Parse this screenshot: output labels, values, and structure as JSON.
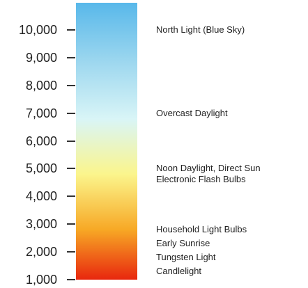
{
  "scale": {
    "unit": "",
    "ticks": [
      {
        "value": 10000,
        "label": "10,000"
      },
      {
        "value": 9000,
        "label": "9,000"
      },
      {
        "value": 8000,
        "label": "8,000"
      },
      {
        "value": 7000,
        "label": "7,000"
      },
      {
        "value": 6000,
        "label": "6,000"
      },
      {
        "value": 5000,
        "label": "5,000"
      },
      {
        "value": 4000,
        "label": "4,000"
      },
      {
        "value": 3000,
        "label": "3,000"
      },
      {
        "value": 2000,
        "label": "2,000"
      },
      {
        "value": 1000,
        "label": "1,000"
      }
    ],
    "gradient_colors": [
      "#e8270e",
      "#f7a825",
      "#fbf58c",
      "#d9f5f7",
      "#9fd8ef",
      "#58b8ea"
    ]
  },
  "descriptions": [
    {
      "text": "North Light (Blue Sky)",
      "value": 10000
    },
    {
      "text": "Overcast Daylight",
      "value": 7000
    },
    {
      "text": "Noon Daylight, Direct Sun",
      "value": 5000
    },
    {
      "text": "Electronic Flash Bulbs",
      "value": 4600
    },
    {
      "text": "Household Light Bulbs",
      "value": 2800
    },
    {
      "text": "Early Sunrise",
      "value": 2300
    },
    {
      "text": "Tungsten Light",
      "value": 1800
    },
    {
      "text": "Candlelight",
      "value": 1300
    }
  ]
}
